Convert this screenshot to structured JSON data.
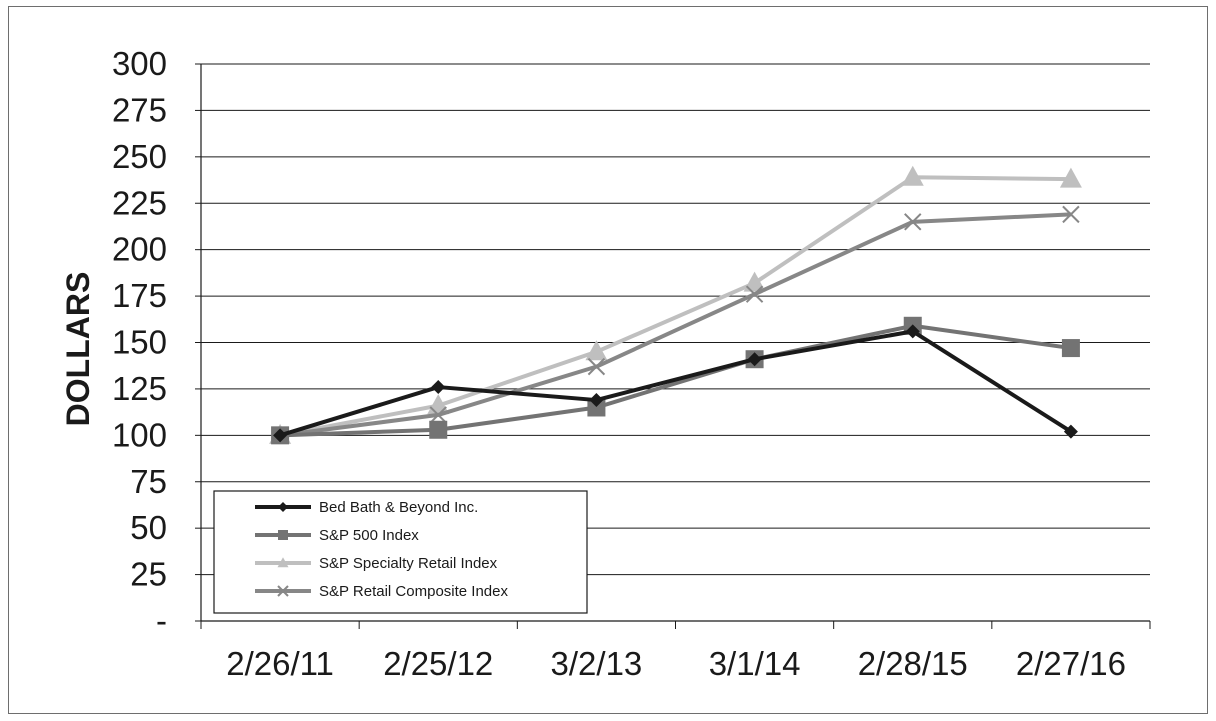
{
  "chart_data": {
    "type": "line",
    "title": "",
    "xlabel": "",
    "ylabel": "DOLLARS",
    "categories": [
      "2/26/11",
      "2/25/12",
      "3/2/13",
      "3/1/14",
      "2/28/15",
      "2/27/16"
    ],
    "y_ticks": [
      "-",
      "25",
      "50",
      "75",
      "100",
      "125",
      "150",
      "175",
      "200",
      "225",
      "250",
      "275",
      "300"
    ],
    "ylim": [
      0,
      300
    ],
    "grid": "horizontal",
    "legend_position": "bottom-left",
    "series": [
      {
        "name": "Bed Bath & Beyond Inc.",
        "values": [
          100,
          126,
          119,
          141,
          156,
          102
        ],
        "color": "#1a1a1a",
        "marker": "diamond"
      },
      {
        "name": "S&P 500 Index",
        "values": [
          100,
          103,
          115,
          141,
          159,
          147
        ],
        "color": "#737373",
        "marker": "square"
      },
      {
        "name": "S&P Specialty Retail Index",
        "values": [
          100,
          116,
          145,
          182,
          239,
          238
        ],
        "color": "#bfbfbf",
        "marker": "triangle"
      },
      {
        "name": "S&P Retail Composite Index",
        "values": [
          100,
          111,
          137,
          176,
          215,
          219
        ],
        "color": "#878787",
        "marker": "x"
      }
    ]
  }
}
